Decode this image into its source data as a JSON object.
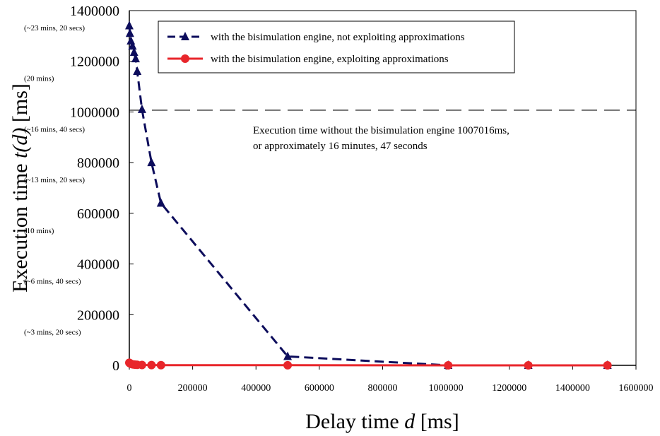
{
  "chart_data": {
    "type": "scatter",
    "xlim": [
      0,
      1600000
    ],
    "ylim": [
      0,
      1400000
    ],
    "x_ticks": [
      0,
      200000,
      400000,
      600000,
      800000,
      1000000,
      1200000,
      1400000,
      1600000
    ],
    "x_tick_labels": [
      "0",
      "200000",
      "400000",
      "600000",
      "800000",
      "1000000",
      "1200000",
      "1400000",
      "1600000"
    ],
    "y_ticks": [
      0,
      200000,
      400000,
      600000,
      800000,
      1000000,
      1200000,
      1400000
    ],
    "y_tick_labels": [
      "0",
      "200000",
      "400000",
      "600000",
      "800000",
      "1000000",
      "1200000",
      "1400000"
    ],
    "y_tick_sublabels": [
      "",
      "(~3 mins, 20 secs)",
      "(~6 mins, 40 secs)",
      "(10 mins)",
      "(~13 mins, 20 secs)",
      "(~16 mins, 40 secs)",
      "(20 mins)",
      "(~23 mins, 20 secs)"
    ],
    "xlabel_prefix": "Delay time ",
    "xlabel_var": "d",
    "xlabel_suffix": " [ms]",
    "ylabel_prefix": "Execution time ",
    "ylabel_var": "t(d)",
    "ylabel_suffix": " [ms]",
    "grid": false,
    "legend_position": "top",
    "series": [
      {
        "name": "with the bisimulation engine, not exploiting approximations",
        "color": "#0d0d5c",
        "marker": "triangle",
        "line": "dashed",
        "x": [
          0,
          2000,
          5000,
          10000,
          15000,
          20000,
          25000,
          40000,
          70000,
          100000,
          500000,
          1007016,
          1260000,
          1510000
        ],
        "y": [
          1340000,
          1310000,
          1280000,
          1260000,
          1235000,
          1210000,
          1160000,
          1010000,
          800000,
          640000,
          35000,
          0,
          0,
          0
        ]
      },
      {
        "name": "with the bisimulation engine, exploiting approximations",
        "color": "#e8262b",
        "marker": "circle",
        "line": "solid",
        "x": [
          0,
          2000,
          5000,
          10000,
          15000,
          20000,
          25000,
          40000,
          70000,
          100000,
          500000,
          1007016,
          1260000,
          1510000
        ],
        "y": [
          10000,
          8000,
          6000,
          4000,
          3000,
          2500,
          2000,
          1500,
          1000,
          800,
          500,
          0,
          0,
          0
        ]
      }
    ],
    "reference_line": {
      "y": 1007016,
      "style": "dashed",
      "text_line1": "Execution time without the bisimulation engine 1007016ms,",
      "text_line2": "or approximately 16 minutes, 47 seconds"
    }
  }
}
